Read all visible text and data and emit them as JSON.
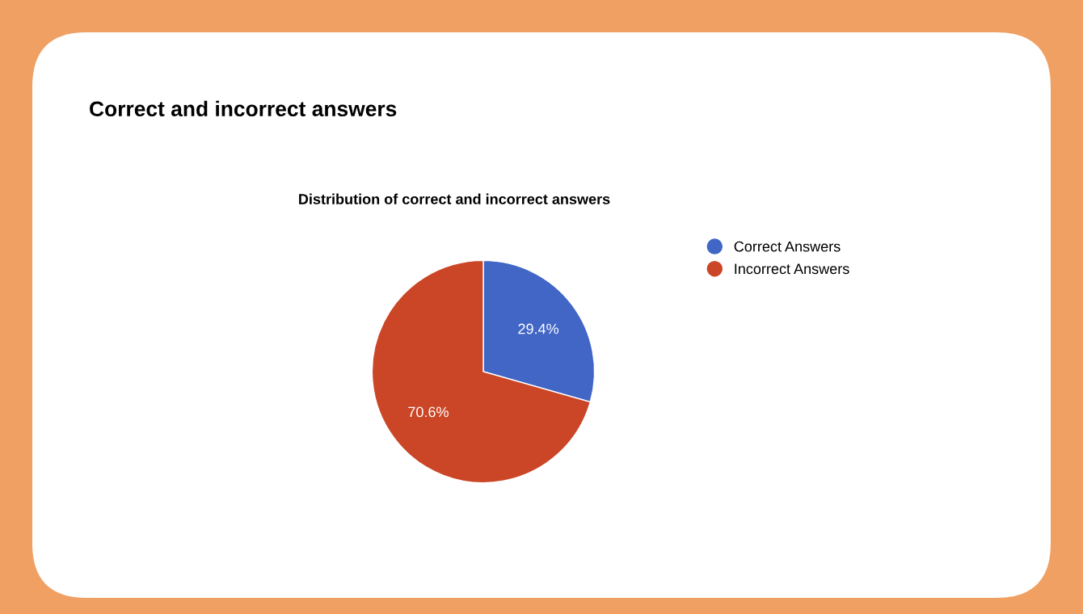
{
  "chart_data": {
    "type": "pie",
    "title": "Correct and incorrect answers",
    "subtitle": "Distribution of correct and incorrect answers",
    "categories": [
      "Correct Answers",
      "Incorrect Answers"
    ],
    "values": [
      29.4,
      70.6
    ],
    "colors": [
      "#4166c6",
      "#cb4627"
    ],
    "value_labels": [
      "29.4%",
      "70.6%"
    ],
    "legend": "right"
  }
}
